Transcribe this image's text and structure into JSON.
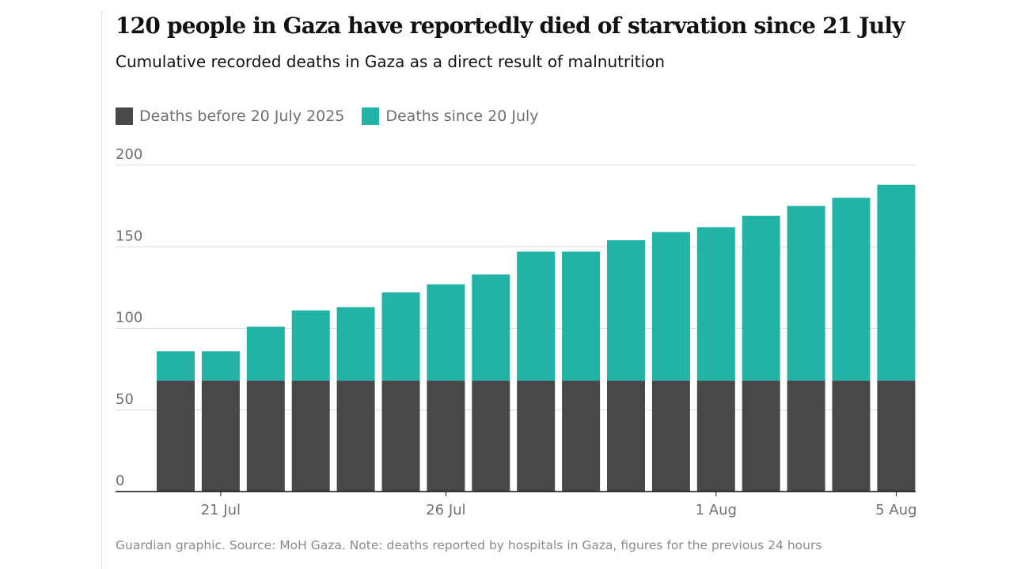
{
  "title": "120 people in Gaza have reportedly died of starvation since 21 July",
  "subtitle": "Cumulative recorded deaths in Gaza as a direct result of malnutrition",
  "legend": [
    {
      "label": "Deaths before 20 July 2025",
      "color": "#484848"
    },
    {
      "label": "Deaths since 20 July",
      "color": "#22b3a6"
    }
  ],
  "source": "Guardian graphic. Source: MoH Gaza. Note: deaths reported by hospitals in Gaza, figures for the previous 24 hours",
  "chart_data": {
    "type": "bar",
    "stacked": true,
    "title": "120 people in Gaza have reportedly died of starvation since 21 July",
    "subtitle": "Cumulative recorded deaths in Gaza as a direct result of malnutrition",
    "categories": [
      "2025-07-20",
      "2025-07-21",
      "2025-07-22",
      "2025-07-23",
      "2025-07-24",
      "2025-07-25",
      "2025-07-26",
      "2025-07-27",
      "2025-07-28",
      "2025-07-29",
      "2025-07-30",
      "2025-07-31",
      "2025-08-01",
      "2025-08-02",
      "2025-08-03",
      "2025-08-04",
      "2025-08-05"
    ],
    "series": [
      {
        "name": "Deaths before 20 July 2025",
        "color": "#484848",
        "values": [
          68,
          68,
          68,
          68,
          68,
          68,
          68,
          68,
          68,
          68,
          68,
          68,
          68,
          68,
          68,
          68,
          68
        ]
      },
      {
        "name": "Deaths since 20 July",
        "color": "#22b3a6",
        "values": [
          18,
          18,
          33,
          43,
          45,
          54,
          59,
          65,
          79,
          79,
          86,
          91,
          94,
          101,
          107,
          112,
          120
        ]
      }
    ],
    "ylim": [
      0,
      200
    ],
    "yticks": [
      0,
      50,
      100,
      150,
      200
    ],
    "xticks": [
      {
        "index": 1,
        "label": "21 Jul"
      },
      {
        "index": 6,
        "label": "26 Jul"
      },
      {
        "index": 12,
        "label": "1 Aug"
      },
      {
        "index": 16,
        "label": "5 Aug"
      }
    ],
    "grid": true,
    "legend_position": "top-left"
  }
}
